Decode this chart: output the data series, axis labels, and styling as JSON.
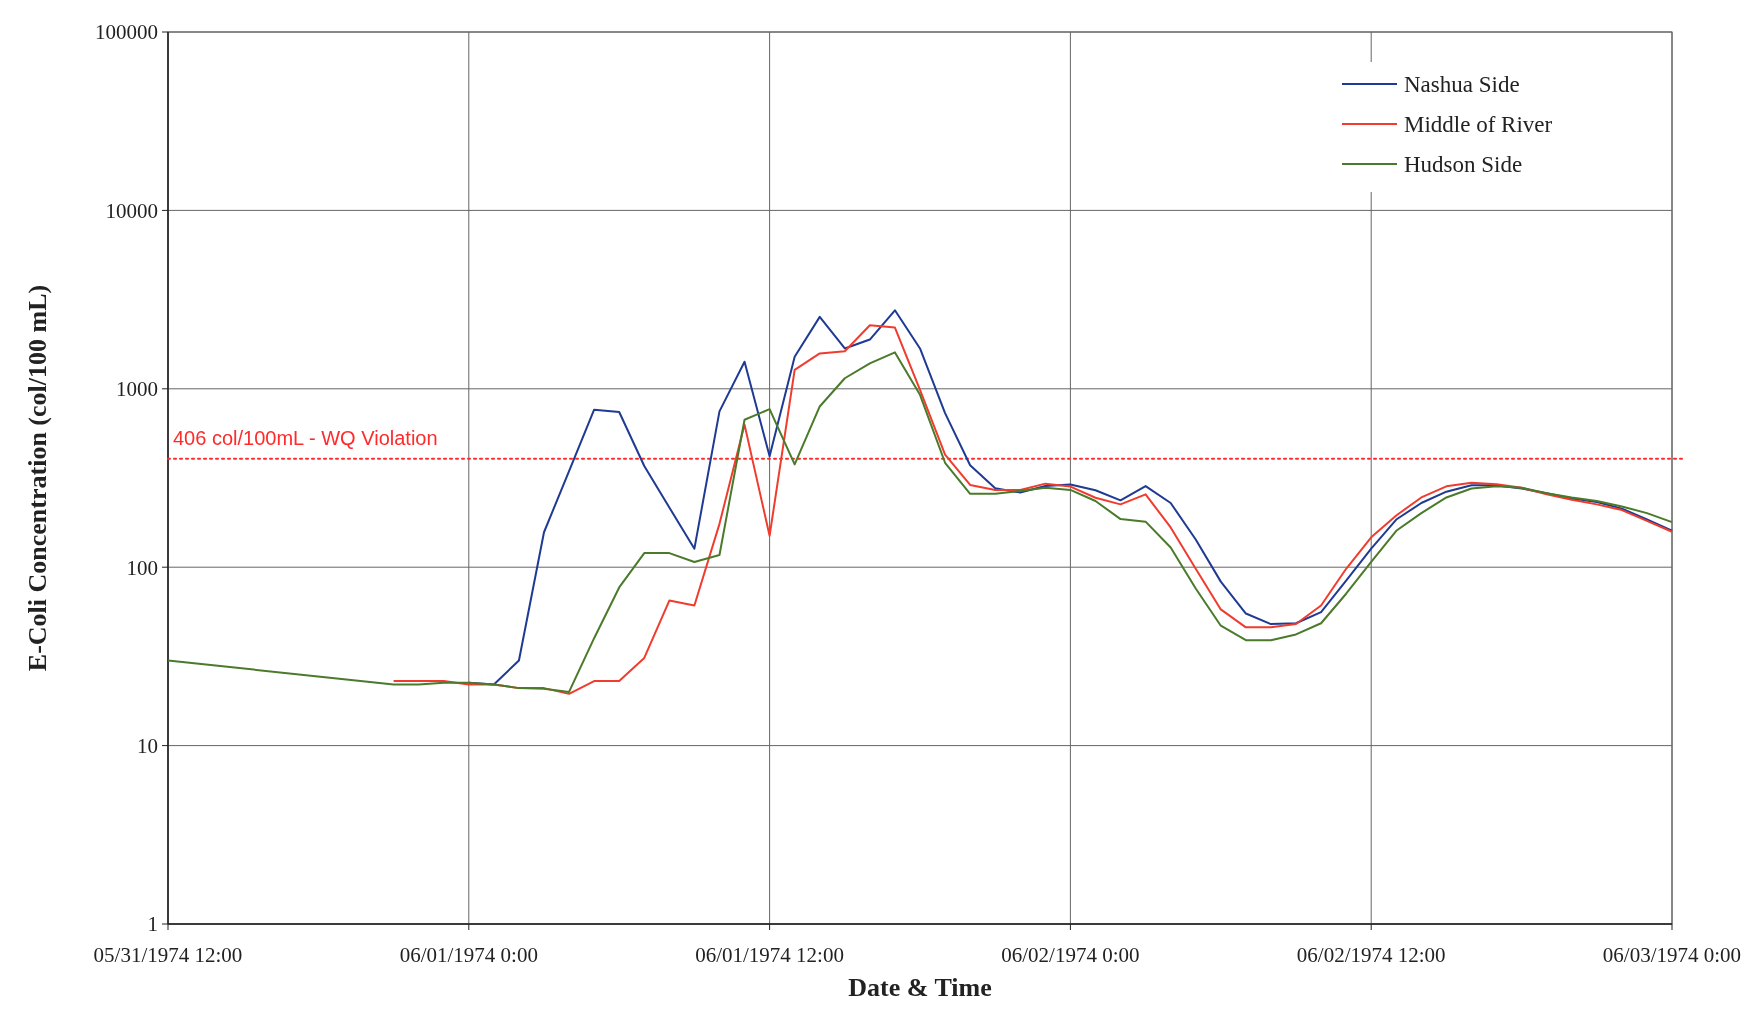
{
  "chart_data": {
    "type": "line",
    "xlabel": "Date & Time",
    "ylabel": "E-Coli Concentration (col/100 mL)",
    "x": [
      "1974-05-31T21:00",
      "1974-05-31T22:00",
      "1974-05-31T23:00",
      "1974-06-01T00:00",
      "1974-06-01T01:00",
      "1974-06-01T02:00",
      "1974-06-01T03:00",
      "1974-06-01T04:00",
      "1974-06-01T05:00",
      "1974-06-01T06:00",
      "1974-06-01T07:00",
      "1974-06-01T08:00",
      "1974-06-01T09:00",
      "1974-06-01T10:00",
      "1974-06-01T11:00",
      "1974-06-01T12:00",
      "1974-06-01T13:00",
      "1974-06-01T14:00",
      "1974-06-01T15:00",
      "1974-06-01T16:00",
      "1974-06-01T17:00",
      "1974-06-01T18:00",
      "1974-06-01T19:00",
      "1974-06-01T20:00",
      "1974-06-01T21:00",
      "1974-06-01T22:00",
      "1974-06-01T23:00",
      "1974-06-02T00:00",
      "1974-06-02T01:00",
      "1974-06-02T02:00",
      "1974-06-02T03:00",
      "1974-06-02T04:00",
      "1974-06-02T05:00",
      "1974-06-02T06:00",
      "1974-06-02T07:00",
      "1974-06-02T08:00",
      "1974-06-02T09:00",
      "1974-06-02T10:00",
      "1974-06-02T11:00",
      "1974-06-02T12:00",
      "1974-06-02T13:00",
      "1974-06-02T14:00",
      "1974-06-02T15:00",
      "1974-06-02T16:00",
      "1974-06-02T17:00",
      "1974-06-02T18:00",
      "1974-06-02T19:00",
      "1974-06-02T20:00",
      "1974-06-02T21:00",
      "1974-06-02T22:00",
      "1974-06-02T23:00",
      "1974-06-03T00:00"
    ],
    "series": [
      {
        "name": "Nashua Side",
        "color": "#1f3a93",
        "values": [
          null,
          null,
          null,
          22.5,
          22,
          30,
          157,
          346,
          764,
          741,
          369,
          216,
          127,
          747,
          1419,
          419,
          1514,
          2530,
          1683,
          1888,
          2754,
          1683,
          731,
          373,
          277,
          262,
          285,
          291,
          270,
          237,
          285,
          229,
          143,
          83,
          55,
          48,
          48.5,
          56,
          84,
          127,
          185,
          229,
          265,
          288,
          288,
          276,
          260,
          243,
          232,
          213,
          185,
          160
        ]
      },
      {
        "name": "Middle of River",
        "color": "#f03c2e",
        "values": [
          23,
          23,
          23,
          22,
          22,
          21,
          21,
          19.5,
          23,
          23,
          31,
          65,
          61,
          175,
          630,
          150,
          1277,
          1578,
          1625,
          2270,
          2203,
          986,
          428,
          289,
          271,
          271,
          294,
          283,
          245,
          225,
          256,
          167,
          98,
          58,
          46,
          46,
          48,
          61,
          98,
          147,
          195,
          246,
          284,
          297,
          292,
          279,
          256,
          239,
          225,
          209,
          182,
          158
        ]
      },
      {
        "name": "Hudson Side",
        "color": "#4a7a2a",
        "x": [
          "1974-05-31T12:00",
          "1974-05-31T21:00",
          "1974-05-31T22:00",
          "1974-05-31T23:00",
          "1974-06-01T00:00",
          "1974-06-01T01:00",
          "1974-06-01T02:00",
          "1974-06-01T03:00",
          "1974-06-01T04:00",
          "1974-06-01T05:00",
          "1974-06-01T06:00",
          "1974-06-01T07:00",
          "1974-06-01T08:00",
          "1974-06-01T09:00",
          "1974-06-01T10:00",
          "1974-06-01T11:00",
          "1974-06-01T12:00",
          "1974-06-01T13:00",
          "1974-06-01T14:00",
          "1974-06-01T15:00",
          "1974-06-01T16:00",
          "1974-06-01T17:00",
          "1974-06-01T18:00",
          "1974-06-01T19:00",
          "1974-06-01T20:00",
          "1974-06-01T21:00",
          "1974-06-01T22:00",
          "1974-06-01T23:00",
          "1974-06-02T00:00",
          "1974-06-02T01:00",
          "1974-06-02T02:00",
          "1974-06-02T03:00",
          "1974-06-02T04:00",
          "1974-06-02T05:00",
          "1974-06-02T06:00",
          "1974-06-02T07:00",
          "1974-06-02T08:00",
          "1974-06-02T09:00",
          "1974-06-02T10:00",
          "1974-06-02T11:00",
          "1974-06-02T12:00",
          "1974-06-02T13:00",
          "1974-06-02T14:00",
          "1974-06-02T15:00",
          "1974-06-02T16:00",
          "1974-06-02T17:00",
          "1974-06-02T18:00",
          "1974-06-02T19:00",
          "1974-06-02T20:00",
          "1974-06-02T21:00",
          "1974-06-02T22:00",
          "1974-06-02T23:00",
          "1974-06-03T00:00"
        ],
        "values": [
          30,
          22,
          22,
          22.5,
          22.5,
          22,
          21,
          20.8,
          20,
          40,
          77,
          120,
          120,
          107,
          117,
          671,
          769,
          377,
          796,
          1146,
          1389,
          1600,
          925,
          385,
          258,
          258,
          267,
          279,
          271,
          235,
          186,
          180,
          129,
          76,
          47,
          39,
          39,
          42,
          48.5,
          71,
          107,
          160,
          201,
          246,
          276,
          284,
          279,
          260,
          246,
          235,
          219,
          201,
          179
        ]
      }
    ],
    "xlim": [
      "1974-05-31T12:00",
      "1974-06-03T00:00"
    ],
    "xticks": [
      {
        "value": "1974-05-31T12:00",
        "label": "05/31/1974 12:00"
      },
      {
        "value": "1974-06-01T00:00",
        "label": "06/01/1974 0:00"
      },
      {
        "value": "1974-06-01T12:00",
        "label": "06/01/1974 12:00"
      },
      {
        "value": "1974-06-02T00:00",
        "label": "06/02/1974 0:00"
      },
      {
        "value": "1974-06-02T12:00",
        "label": "06/02/1974 12:00"
      },
      {
        "value": "1974-06-03T00:00",
        "label": "06/03/1974 0:00"
      }
    ],
    "ylim": [
      1,
      100000
    ],
    "yticks": [
      1,
      10,
      100,
      1000,
      10000,
      100000
    ],
    "log": true,
    "grid": true,
    "legend": "top right",
    "marker": "none",
    "line_style": "solid",
    "ref_lines": [
      {
        "axis": "y",
        "value": 406,
        "label": "406 col/100mL - WQ Violation",
        "color": "#ff2a2a",
        "line_style": "dotted"
      }
    ]
  }
}
